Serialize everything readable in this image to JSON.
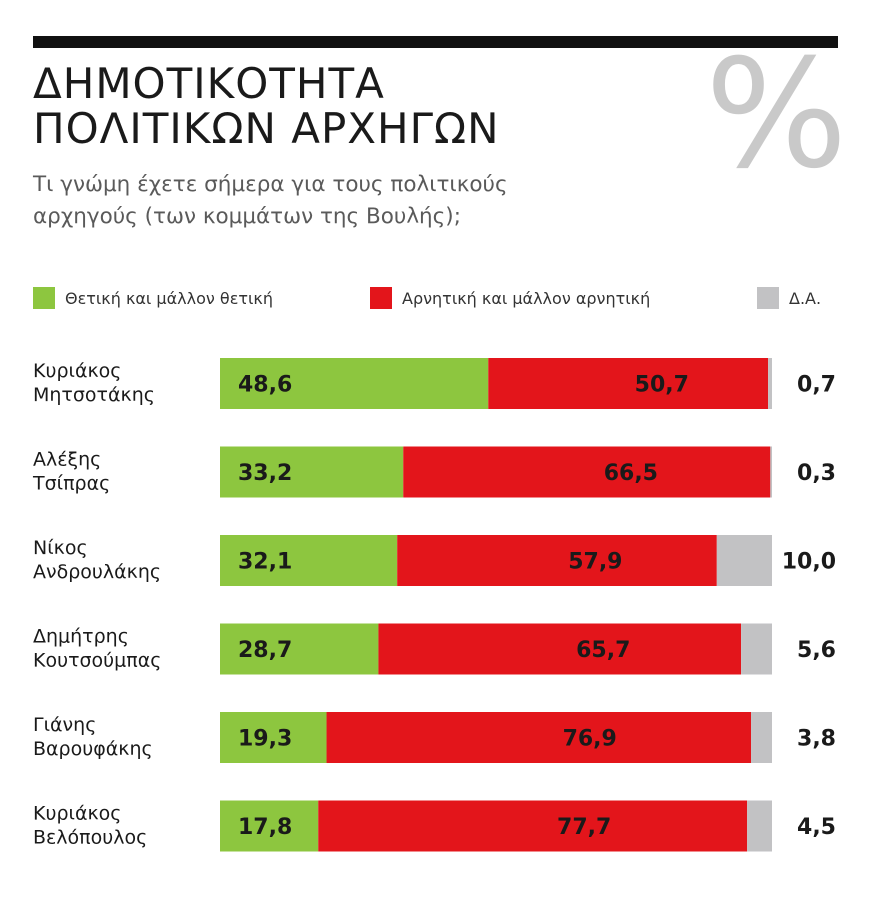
{
  "header": {
    "title_line_1": "ΔΗΜΟΤΙΚΟΤΗΤΑ",
    "title_line_2": "ΠΟΛΙΤΙΚΩΝ ΑΡΧΗΓΩΝ",
    "percent_symbol": "%",
    "subtitle_line_1": "Τι γνώμη έχετε σήμερα για τους πολιτικούς",
    "subtitle_line_2": "αρχηγούς (των κομμάτων της Βουλής);"
  },
  "colors": {
    "positive": "#8dc63f",
    "negative": "#e3151b",
    "no_answer": "#c2c2c4",
    "rule": "#111111",
    "percent_icon": "#c9c9c9"
  },
  "chart_data": {
    "type": "bar",
    "orientation": "horizontal",
    "stacked": true,
    "unit": "%",
    "legend": [
      "Θετική και μάλλον θετική",
      "Αρνητική και μάλλον αρνητική",
      "Δ.Α."
    ],
    "legend_position": "top",
    "grid": false,
    "xlim": [
      0,
      100
    ],
    "categories": [
      [
        "Κυριάκος",
        "Μητσοτάκης"
      ],
      [
        "Αλέξης",
        "Τσίπρας"
      ],
      [
        "Νίκος",
        "Ανδρουλάκης"
      ],
      [
        "Δημήτρης",
        "Κουτσούμπας"
      ],
      [
        "Γιάνης",
        "Βαρουφάκης"
      ],
      [
        "Κυριάκος",
        "Βελόπουλος"
      ]
    ],
    "series": [
      {
        "name": "Θετική και μάλλον θετική",
        "values": [
          "48,6",
          "33,2",
          "32,1",
          "28,7",
          "19,3",
          "17,8"
        ]
      },
      {
        "name": "Αρνητική και μάλλον αρνητική",
        "values": [
          "50,7",
          "66,5",
          "57,9",
          "65,7",
          "76,9",
          "77,7"
        ]
      },
      {
        "name": "Δ.Α.",
        "values": [
          "0,7",
          "0,3",
          "10,0",
          "5,6",
          "3,8",
          "4,5"
        ]
      }
    ]
  }
}
